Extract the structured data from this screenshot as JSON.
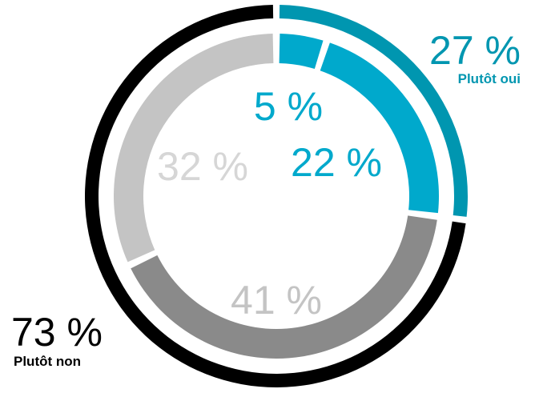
{
  "chart_data": {
    "type": "pie",
    "style": "nested-donut",
    "outer_ring": [
      {
        "label": "Plutôt oui",
        "value_label": "27 %",
        "value": 27,
        "color": "#0096B0"
      },
      {
        "label": "Plutôt non",
        "value_label": "73 %",
        "value": 73,
        "color": "#000000"
      }
    ],
    "inner_ring": [
      {
        "value_label": "5 %",
        "value": 5,
        "color": "#00A9CC",
        "text_color": "#00A9CC"
      },
      {
        "value_label": "22 %",
        "value": 22,
        "color": "#00A9CC",
        "text_color": "#00A9CC"
      },
      {
        "value_label": "41 %",
        "value": 41,
        "color": "#8A8A8A",
        "text_color": "#C4C4C4"
      },
      {
        "value_label": "32 %",
        "value": 32,
        "color": "#C4C4C4",
        "text_color": "#D6D6D6"
      }
    ]
  }
}
